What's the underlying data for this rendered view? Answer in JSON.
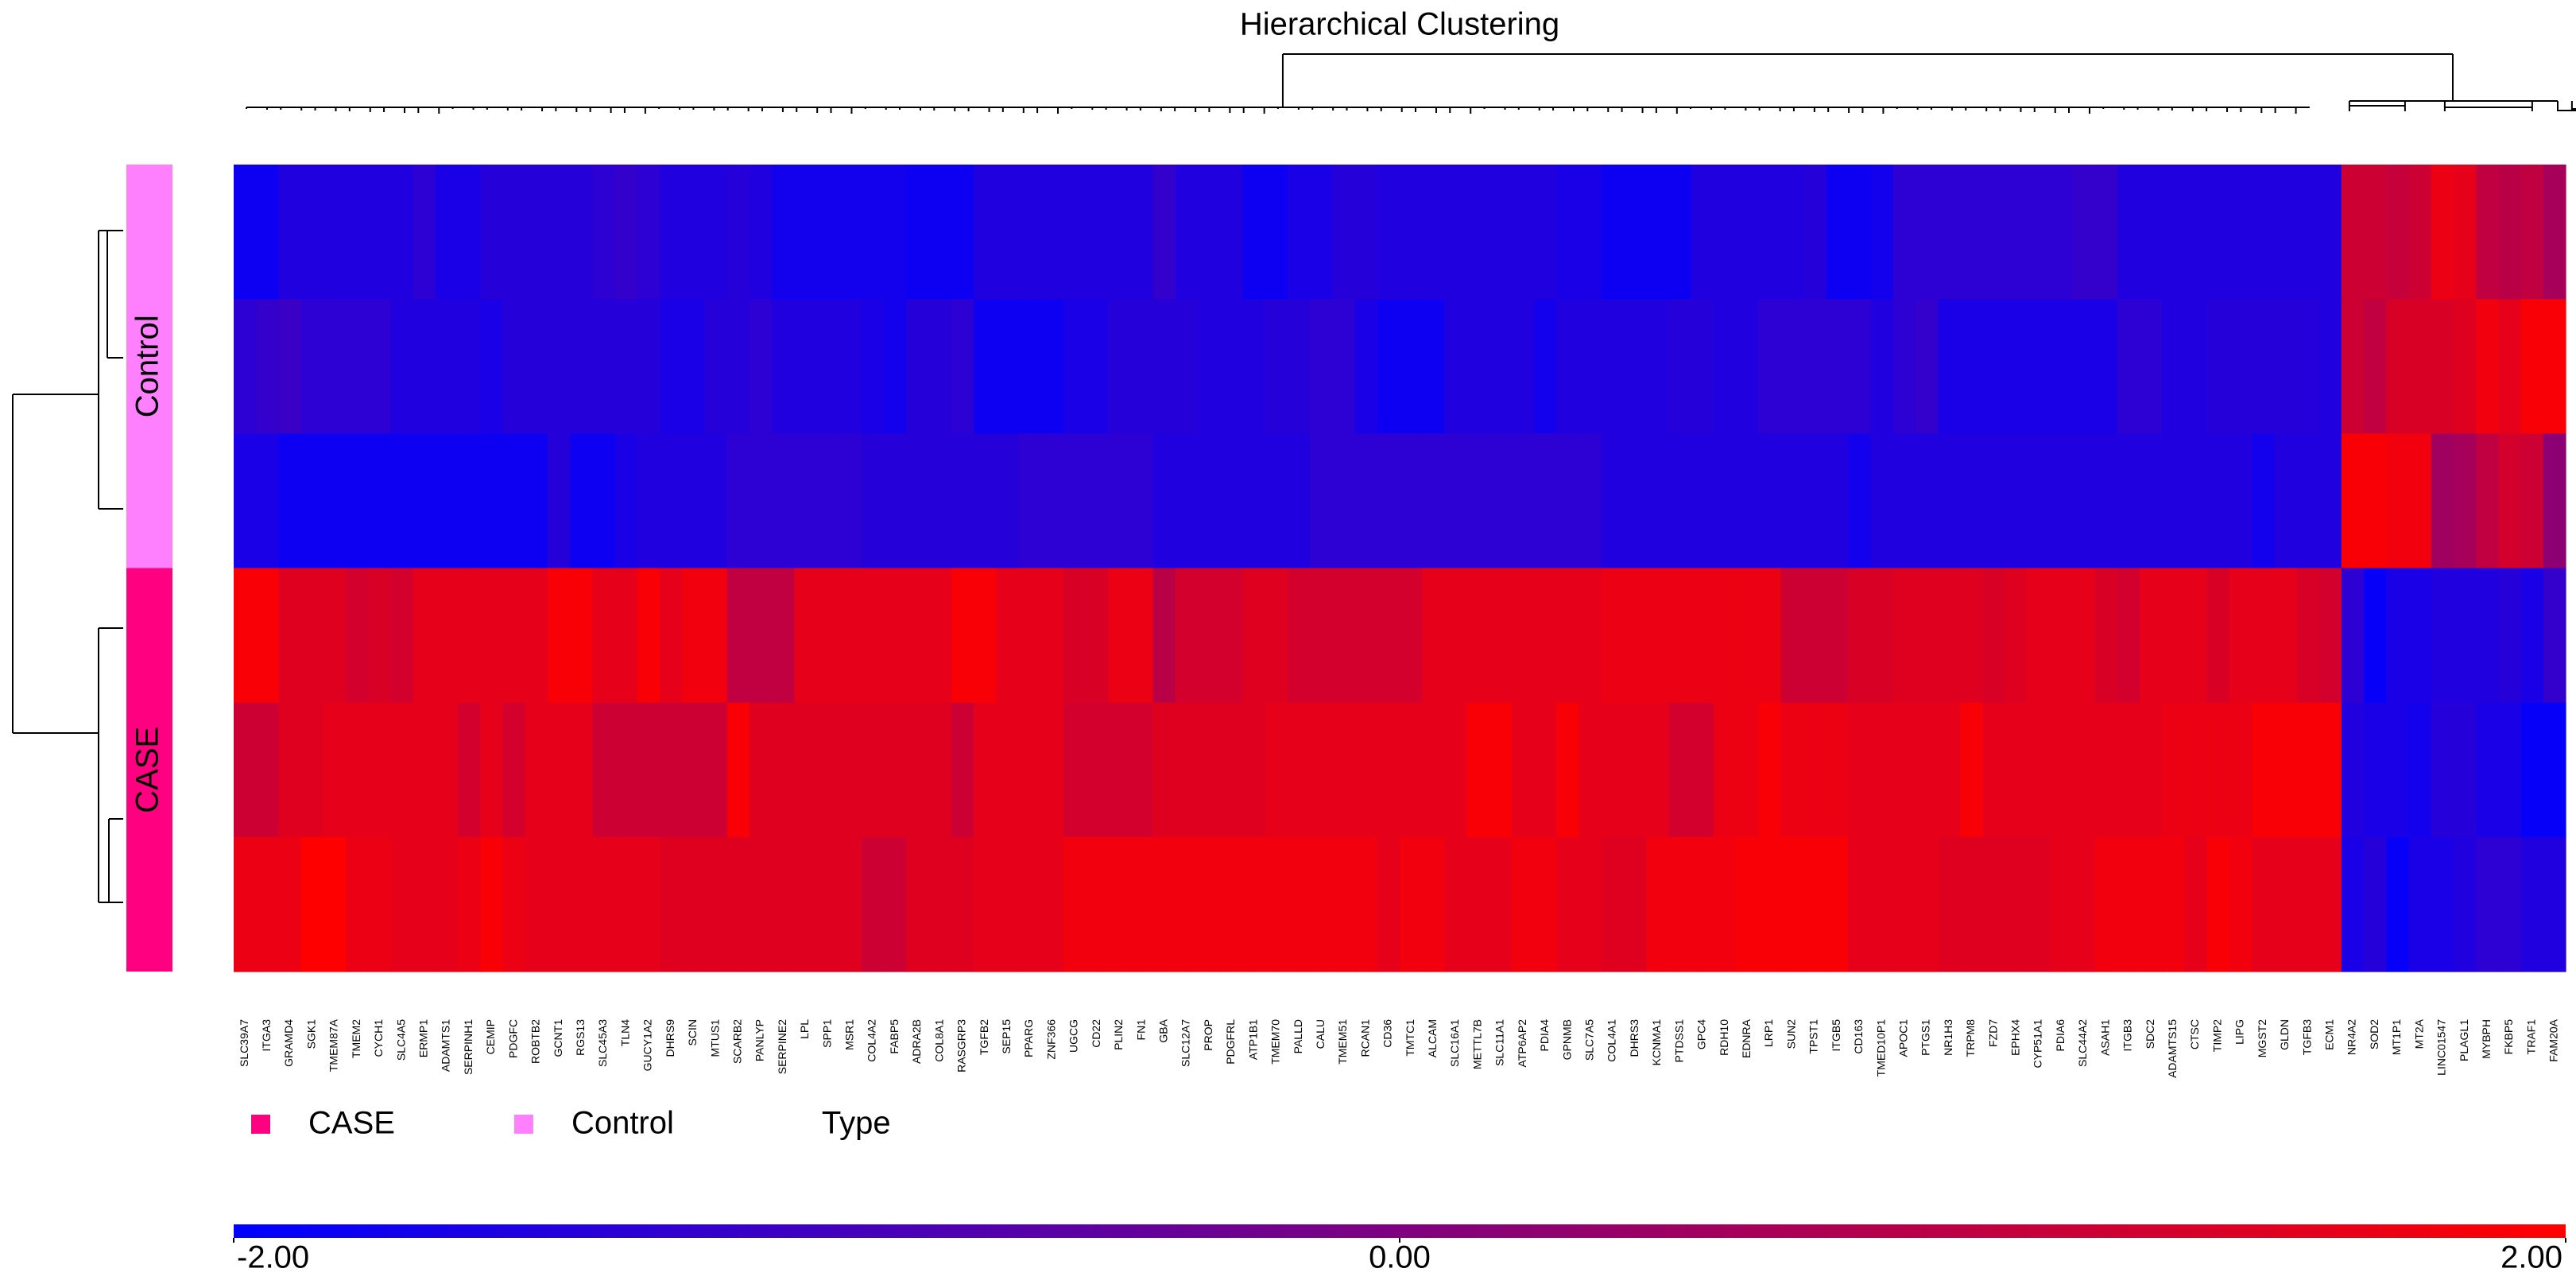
{
  "chart_data": {
    "type": "heatmap",
    "title": "Hierarchical Clustering",
    "legend_title": "Type",
    "colorscale": [
      "#0000ff",
      "#800080",
      "#ff0000"
    ],
    "clim": [
      -2,
      2
    ],
    "cticks": [
      {
        "value": -2,
        "label": "-2.00"
      },
      {
        "value": 0,
        "label": "0.00"
      },
      {
        "value": 2,
        "label": "2.00"
      }
    ],
    "columns": [
      "SLC39A7",
      "ITGA3",
      "GRAMD4",
      "SGK1",
      "TMEM87A",
      "TMEM2",
      "CYCH1",
      "SLC4A5",
      "ERMP1",
      "ADAMTS1",
      "SERPINH1",
      "CEMIP",
      "PDGFC",
      "ROBTB2",
      "GCNT1",
      "RGS13",
      "SLC45A3",
      "TLN4",
      "GUCY1A2",
      "DHRS9",
      "SCIN",
      "MTUS1",
      "SCARB2",
      "PANLYP",
      "SERPINE2",
      "LPL",
      "SPP1",
      "MSR1",
      "COL4A2",
      "FABP5",
      "ADRA2B",
      "COL8A1",
      "RASGRP3",
      "TGFB2",
      "SEP15",
      "PPARG",
      "ZNF366",
      "UGCG",
      "CD22",
      "PLIN2",
      "FN1",
      "GBA",
      "SLC12A7",
      "PROP",
      "PDGFRL",
      "ATP1B1",
      "TMEM70",
      "PALLD",
      "CALU",
      "TMEM51",
      "RCAN1",
      "CD36",
      "TMTC1",
      "ALCAM",
      "SLC16A1",
      "METTL7B",
      "SLC11A1",
      "ATP6AP2",
      "PDIA4",
      "GPNMB",
      "SLC7A5",
      "COL4A1",
      "DHRS3",
      "KCNMA1",
      "PTDSS1",
      "GPC4",
      "RDH10",
      "EDNRA",
      "LRP1",
      "SUN2",
      "TPST1",
      "ITGB5",
      "CD163",
      "TMED10P1",
      "APOC1",
      "PTGS1",
      "NR1H3",
      "TRPM8",
      "FZD7",
      "EPHX4",
      "CYP51A1",
      "PDIA6",
      "SLC44A2",
      "ASAH1",
      "ITGB3",
      "SDC2",
      "ADAMTS15",
      "CTSC",
      "TIMP2",
      "LIPG",
      "MGST2",
      "GLDN",
      "TGFB3",
      "ECM1",
      "NR4A2",
      "SOD2",
      "MT1P1",
      "MT2A",
      "LINC01547",
      "PLAGL1",
      "MYBPH",
      "FKBP5",
      "TRAF1",
      "FAM20A"
    ],
    "groups": [
      {
        "name": "Control",
        "color": "#ff80ff",
        "rows": [
          [
            -1.8,
            -1.8,
            -1.5,
            -1.5,
            -1.5,
            -1.5,
            -1.5,
            -1.5,
            -1.3,
            -1.6,
            -1.6,
            -1.4,
            -1.4,
            -1.4,
            -1.4,
            -1.4,
            -1.3,
            -1.2,
            -1.3,
            -1.5,
            -1.5,
            -1.5,
            -1.4,
            -1.5,
            -1.7,
            -1.7,
            -1.7,
            -1.7,
            -1.7,
            -1.7,
            -1.8,
            -1.8,
            -1.8,
            -1.5,
            -1.5,
            -1.5,
            -1.5,
            -1.5,
            -1.5,
            -1.5,
            -1.5,
            -1.2,
            -1.5,
            -1.5,
            -1.5,
            -1.8,
            -1.8,
            -1.6,
            -1.6,
            -1.4,
            -1.4,
            -1.5,
            -1.5,
            -1.5,
            -1.5,
            -1.5,
            -1.5,
            -1.5,
            -1.5,
            -1.6,
            -1.6,
            -1.8,
            -1.8,
            -1.8,
            -1.8,
            -1.5,
            -1.5,
            -1.5,
            -1.5,
            -1.5,
            -1.4,
            -1.8,
            -1.8,
            -1.7,
            -1.3,
            -1.3,
            -1.3,
            -1.3,
            -1.3,
            -1.3,
            -1.3,
            -1.3,
            -1.2,
            -1.2,
            -1.5,
            -1.5,
            -1.5,
            -1.5,
            -1.5,
            -1.5,
            -1.5,
            -1.5,
            -1.5,
            -1.5,
            1.2,
            1.2,
            1.1,
            1.2,
            1.7,
            1.6,
            1.0,
            0.9,
            1.0,
            0.6
          ],
          [
            -1.3,
            -1.2,
            -1.1,
            -1.3,
            -1.3,
            -1.3,
            -1.3,
            -1.5,
            -1.5,
            -1.5,
            -1.5,
            -1.6,
            -1.4,
            -1.4,
            -1.4,
            -1.4,
            -1.4,
            -1.4,
            -1.4,
            -1.6,
            -1.6,
            -1.4,
            -1.4,
            -1.3,
            -1.5,
            -1.5,
            -1.5,
            -1.5,
            -1.6,
            -1.7,
            -1.4,
            -1.4,
            -1.3,
            -1.8,
            -1.8,
            -1.8,
            -1.8,
            -1.6,
            -1.6,
            -1.4,
            -1.4,
            -1.4,
            -1.4,
            -1.5,
            -1.5,
            -1.5,
            -1.4,
            -1.4,
            -1.3,
            -1.3,
            -1.6,
            -1.8,
            -1.8,
            -1.8,
            -1.5,
            -1.5,
            -1.5,
            -1.5,
            -1.7,
            -1.5,
            -1.5,
            -1.5,
            -1.5,
            -1.5,
            -1.4,
            -1.4,
            -1.5,
            -1.5,
            -1.3,
            -1.3,
            -1.3,
            -1.3,
            -1.3,
            -1.5,
            -1.3,
            -1.2,
            -1.6,
            -1.6,
            -1.6,
            -1.6,
            -1.6,
            -1.6,
            -1.6,
            -1.6,
            -1.3,
            -1.3,
            -1.5,
            -1.5,
            -1.4,
            -1.4,
            -1.4,
            -1.4,
            -1.4,
            -1.5,
            1.2,
            1.0,
            1.4,
            1.4,
            1.4,
            1.5,
            1.8,
            1.6,
            1.9,
            1.9
          ],
          [
            -1.6,
            -1.6,
            -1.8,
            -1.8,
            -1.8,
            -1.8,
            -1.8,
            -1.8,
            -1.8,
            -1.8,
            -1.8,
            -1.8,
            -1.8,
            -1.8,
            -1.4,
            -1.8,
            -1.8,
            -1.6,
            -1.5,
            -1.5,
            -1.5,
            -1.5,
            -1.3,
            -1.3,
            -1.3,
            -1.3,
            -1.3,
            -1.3,
            -1.4,
            -1.4,
            -1.4,
            -1.4,
            -1.4,
            -1.4,
            -1.4,
            -1.3,
            -1.3,
            -1.3,
            -1.3,
            -1.3,
            -1.3,
            -1.5,
            -1.5,
            -1.5,
            -1.5,
            -1.5,
            -1.5,
            -1.5,
            -1.3,
            -1.3,
            -1.3,
            -1.3,
            -1.3,
            -1.3,
            -1.3,
            -1.3,
            -1.3,
            -1.3,
            -1.3,
            -1.3,
            -1.3,
            -1.5,
            -1.5,
            -1.5,
            -1.5,
            -1.5,
            -1.5,
            -1.5,
            -1.5,
            -1.5,
            -1.5,
            -1.5,
            -1.7,
            -1.5,
            -1.5,
            -1.5,
            -1.5,
            -1.5,
            -1.5,
            -1.5,
            -1.5,
            -1.5,
            -1.5,
            -1.5,
            -1.5,
            -1.5,
            -1.5,
            -1.5,
            -1.5,
            -1.5,
            -1.7,
            -1.5,
            -1.5,
            -1.5,
            1.9,
            1.9,
            1.8,
            1.8,
            0.5,
            0.6,
            1.0,
            1.3,
            1.2,
            0.2
          ]
        ]
      },
      {
        "name": "CASE",
        "color": "#ff0080",
        "rows": [
          [
            1.9,
            1.9,
            1.5,
            1.5,
            1.5,
            1.3,
            1.4,
            1.3,
            1.6,
            1.6,
            1.6,
            1.6,
            1.6,
            1.6,
            1.9,
            1.9,
            1.6,
            1.6,
            1.9,
            1.6,
            1.8,
            1.8,
            1.0,
            1.0,
            1.0,
            1.6,
            1.6,
            1.6,
            1.6,
            1.6,
            1.6,
            1.6,
            1.9,
            1.9,
            1.6,
            1.6,
            1.6,
            1.4,
            1.4,
            1.7,
            1.7,
            0.9,
            1.3,
            1.3,
            1.3,
            1.5,
            1.5,
            1.3,
            1.3,
            1.3,
            1.3,
            1.3,
            1.3,
            1.6,
            1.6,
            1.6,
            1.6,
            1.6,
            1.6,
            1.6,
            1.6,
            1.7,
            1.7,
            1.7,
            1.7,
            1.7,
            1.7,
            1.7,
            1.7,
            1.2,
            1.2,
            1.2,
            1.4,
            1.4,
            1.5,
            1.5,
            1.5,
            1.5,
            1.4,
            1.5,
            1.6,
            1.6,
            1.6,
            1.4,
            1.3,
            1.6,
            1.6,
            1.6,
            1.4,
            1.6,
            1.6,
            1.6,
            1.4,
            1.3,
            -1.3,
            -1.9,
            -1.6,
            -1.6,
            -1.5,
            -1.5,
            -1.5,
            -1.4,
            -1.6,
            -1.2
          ],
          [
            1.2,
            1.2,
            1.5,
            1.5,
            1.6,
            1.6,
            1.6,
            1.6,
            1.6,
            1.6,
            1.3,
            1.6,
            1.3,
            1.6,
            1.6,
            1.6,
            1.2,
            1.2,
            1.2,
            1.2,
            1.2,
            1.2,
            1.9,
            1.5,
            1.5,
            1.5,
            1.5,
            1.5,
            1.5,
            1.5,
            1.5,
            1.5,
            1.2,
            1.6,
            1.6,
            1.6,
            1.6,
            1.3,
            1.3,
            1.3,
            1.3,
            1.5,
            1.5,
            1.5,
            1.5,
            1.5,
            1.6,
            1.6,
            1.6,
            1.6,
            1.6,
            1.6,
            1.6,
            1.6,
            1.6,
            1.9,
            1.9,
            1.6,
            1.6,
            1.9,
            1.6,
            1.6,
            1.6,
            1.6,
            1.3,
            1.3,
            1.7,
            1.7,
            1.9,
            1.7,
            1.7,
            1.7,
            1.6,
            1.6,
            1.6,
            1.6,
            1.6,
            1.9,
            1.6,
            1.6,
            1.6,
            1.6,
            1.6,
            1.6,
            1.6,
            1.6,
            1.7,
            1.7,
            1.7,
            1.7,
            1.9,
            1.9,
            1.9,
            1.9,
            -1.5,
            -1.6,
            -1.6,
            -1.7,
            -1.4,
            -1.4,
            -1.6,
            -1.6,
            -1.9,
            -1.9
          ],
          [
            1.7,
            1.7,
            1.7,
            2.0,
            2.0,
            1.7,
            1.7,
            1.6,
            1.6,
            1.6,
            1.7,
            1.9,
            1.7,
            1.6,
            1.6,
            1.6,
            1.6,
            1.6,
            1.6,
            1.5,
            1.5,
            1.5,
            1.5,
            1.5,
            1.5,
            1.5,
            1.5,
            1.5,
            1.2,
            1.2,
            1.5,
            1.5,
            1.5,
            1.6,
            1.6,
            1.6,
            1.6,
            1.8,
            1.8,
            1.8,
            1.8,
            1.8,
            1.8,
            1.8,
            1.8,
            1.8,
            1.8,
            1.8,
            1.8,
            1.8,
            1.8,
            1.6,
            1.8,
            1.8,
            1.6,
            1.6,
            1.6,
            1.8,
            1.8,
            1.6,
            1.6,
            1.5,
            1.5,
            1.8,
            1.8,
            1.8,
            1.8,
            1.9,
            1.9,
            1.9,
            1.9,
            1.9,
            1.6,
            1.6,
            1.6,
            1.6,
            1.5,
            1.5,
            1.5,
            1.5,
            1.5,
            1.6,
            1.6,
            1.8,
            1.8,
            1.8,
            1.8,
            1.6,
            1.9,
            1.8,
            1.6,
            1.6,
            1.6,
            1.6,
            -1.6,
            -1.4,
            -1.9,
            -1.6,
            -1.6,
            -1.5,
            -1.3,
            -1.3,
            -1.5,
            -1.5
          ]
        ]
      }
    ]
  }
}
